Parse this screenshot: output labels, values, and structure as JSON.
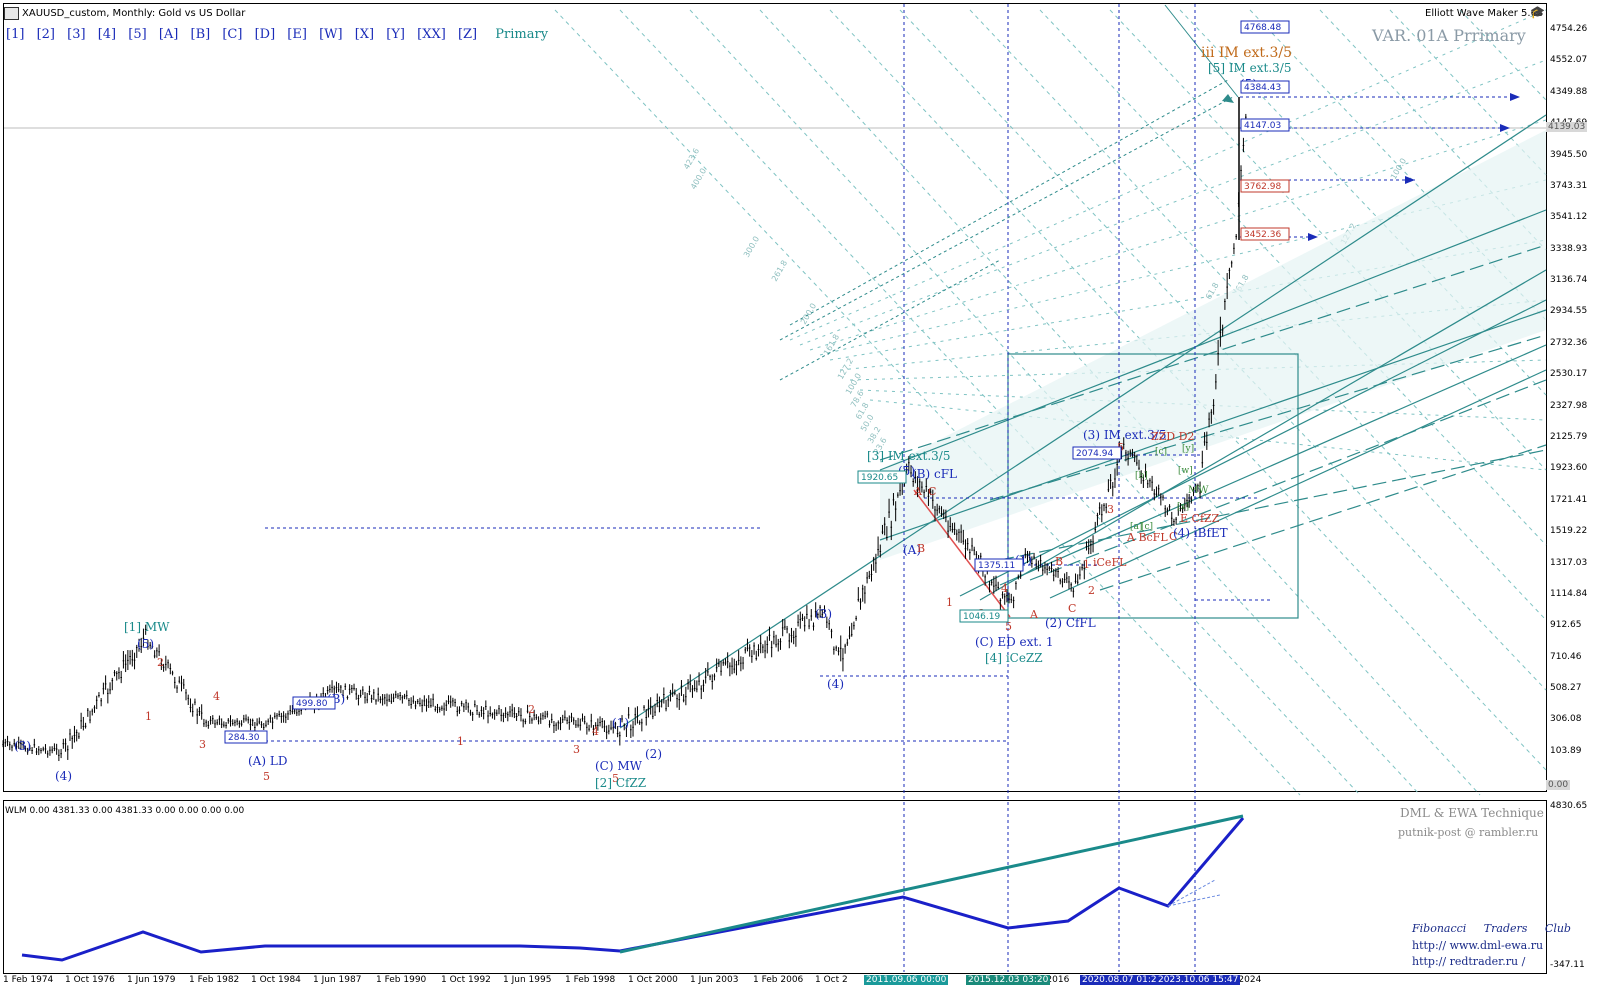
{
  "window": {
    "title": "XAUUSD_custom, Monthly:  Gold vs US Dollar",
    "plugin_title": "Elliott Wave Maker 5.63",
    "variant": "VAR. 01A Prrimary"
  },
  "toolbar": {
    "items": [
      "[1]",
      "[2]",
      "[3]",
      "[4]",
      "[5]",
      "[A]",
      "[B]",
      "[C]",
      "[D]",
      "[E]",
      "[W]",
      "[X]",
      "[Y]",
      "[XX]",
      "[Z]"
    ],
    "primary": "Primary"
  },
  "price_axis": {
    "ticks": [
      "4754.26",
      "4552.07",
      "4349.88",
      "4147.69",
      "3945.50",
      "3743.31",
      "3541.12",
      "3338.93",
      "3136.74",
      "2934.55",
      "2732.36",
      "2530.17",
      "2327.98",
      "2125.79",
      "1923.60",
      "1721.41",
      "1519.22",
      "1317.03",
      "1114.84",
      "912.65",
      "710.46",
      "508.27",
      "306.08",
      "103.89"
    ],
    "current_price": "4139.03",
    "zero_label": "0.00"
  },
  "indicator": {
    "label": "WLM 0.00 4381.33 0.00 4381.33 0.00 0.00 0.00 0.00",
    "top_value": "4830.65",
    "bottom_value": "-347.11"
  },
  "time_axis": {
    "labels": [
      "1 Feb 1974",
      "1 Oct 1976",
      "1 Jun 1979",
      "1 Feb 1982",
      "1 Oct 1984",
      "1 Jun 1987",
      "1 Feb 1990",
      "1 Oct 1992",
      "1 Jun 1995",
      "1 Feb 1998",
      "1 Oct 2000",
      "1 Jun 2003",
      "1 Feb 2006",
      "1 Oct 2"
    ],
    "tail_labels": [
      "t 2016",
      "t 2024"
    ],
    "highlighted": [
      "2011.09.06 00:00",
      "2015.12.03 03:20",
      "2020.08.07 01:21",
      "2023.10.06 15:47"
    ]
  },
  "price_boxes": {
    "p4768": "4768.48",
    "p4384": "4384.43",
    "p4147": "4147.03",
    "p3762": "3762.98",
    "p3452": "3452.36",
    "p2074": "2074.94",
    "p1920": "1920.65",
    "p1375": "1375.11",
    "p1046": "1046.19",
    "p499": "499.80",
    "p284": "284.30"
  },
  "wave_labels": {
    "l1": "(3)",
    "l2": "(4)",
    "l3": "[1] MW",
    "l4": "(5)",
    "l5": "2",
    "l6": "1",
    "l7": "3",
    "l8": "4",
    "l9": "5",
    "l10": "(A) LD",
    "l11": "(B)",
    "l12": "1",
    "l13": "2",
    "l14": "3",
    "l15": "4",
    "l16": "5",
    "l17": "(1)",
    "l18": "(C) MW",
    "l19": "[2] CfZZ",
    "l20": "(2)",
    "l21": "(3)",
    "l22": "(4)",
    "l23": "[3] IM ext.3/5",
    "l24": "(5)",
    "l25": "(B) cFL",
    "l26": "(A)",
    "l27": "B",
    "l28": "A",
    "l29": "C",
    "l30": "1",
    "l31": "3",
    "l32": "4",
    "l33": "5",
    "l34": "(C) ED ext. 1",
    "l35": "[4] iCeZZ",
    "l36": "(1)",
    "l37": "A",
    "l38": "B",
    "l39": "C",
    "l40": "(2) CfFL",
    "l41": "1",
    "l42": "iCeFL",
    "l43": "2",
    "l44": "3",
    "l45": "(3) IM ext.3/5",
    "l46": "5",
    "l47": "A BcFL",
    "l48": "C",
    "l49": "(4) iBfET",
    "l50": "E CfZZ",
    "l51": "ZZD D2",
    "l52": "iii IM ext.3/5",
    "l53": "[5] IM ext.3/5",
    "l54": "(5)",
    "l55": "[a]",
    "l56": "[c]",
    "l57": "[b]",
    "l58": "[c]",
    "l59": "[y]",
    "l60": "[x]",
    "l61": "[w]",
    "l62": "MW"
  },
  "fib_labels": {
    "f1": "423.6",
    "f2": "400.0",
    "f3": "300.0",
    "f4": "261.8",
    "f5": "200.0",
    "f6": "161.8",
    "f7": "127.2",
    "f8": "100.0",
    "f9": "78.6",
    "f10": "61.8",
    "f11": "50.0",
    "f12": "38.2",
    "f13": "23.6",
    "f14": "61.8",
    "f15": "127.2",
    "f16": "100.0",
    "f17": "61.8"
  },
  "signature": {
    "line1": "DML & EWA Technique",
    "line2": "putnik-post @ rambler.ru",
    "club": "Fibonacci Traders Club",
    "url1": "http://  www.dml-ewa.ru",
    "url2": "http:// redtrader.ru /"
  },
  "colors": {
    "candle": "#000000",
    "wave_blue": "#1a2bb8",
    "wave_red": "#c0392b",
    "wave_teal": "#1a8a8a",
    "channel": "#2e8b8b",
    "fib": "#7fc3c3",
    "grid_dash": "#1a2bb8",
    "orange": "#c06a1a"
  },
  "chart_data": {
    "type": "candlestick",
    "symbol": "XAUUSD_custom",
    "timeframe": "Monthly",
    "ylim": [
      0,
      4830
    ],
    "closes_key_points": [
      {
        "x": "1974-02",
        "y": 150
      },
      {
        "x": "1976-08",
        "y": 104
      },
      {
        "x": "1980-01",
        "y": 850
      },
      {
        "x": "1982-06",
        "y": 300
      },
      {
        "x": "1985-02",
        "y": 284
      },
      {
        "x": "1987-12",
        "y": 499
      },
      {
        "x": "1999-08",
        "y": 252
      },
      {
        "x": "2008-03",
        "y": 1000
      },
      {
        "x": "2008-10",
        "y": 700
      },
      {
        "x": "2011-09",
        "y": 1920
      },
      {
        "x": "2015-12",
        "y": 1046
      },
      {
        "x": "2016-07",
        "y": 1375
      },
      {
        "x": "2018-08",
        "y": 1160
      },
      {
        "x": "2020-08",
        "y": 2074
      },
      {
        "x": "2022-09",
        "y": 1615
      },
      {
        "x": "2023-10",
        "y": 1810
      },
      {
        "x": "2025-04",
        "y": 3450
      },
      {
        "x": "2025-10",
        "y": 4384
      }
    ]
  }
}
